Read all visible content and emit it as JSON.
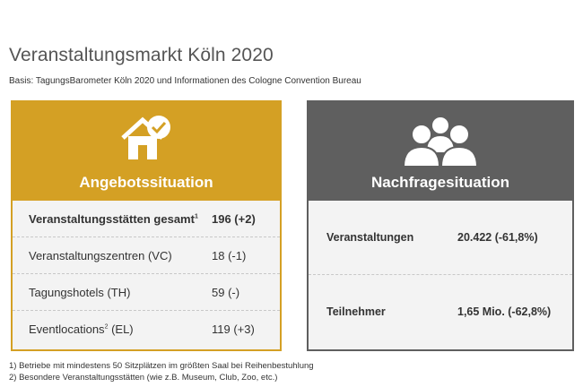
{
  "page": {
    "title": "Veranstaltungsmarkt Köln 2020",
    "subtitle": "Basis: TagungsBarometer Köln 2020 und Informationen des Cologne Convention Bureau"
  },
  "supply": {
    "heading": "Angebotssituation",
    "icon": "house-check-icon",
    "accent": "#d4a024",
    "rows": [
      {
        "label": "Veranstaltungsstätten gesamt",
        "footnote": "1",
        "value": "196 (+2)"
      },
      {
        "label": "Veranstaltungszentren (VC)",
        "footnote": "",
        "value": "18 (-1)"
      },
      {
        "label": "Tagungshotels (TH)",
        "footnote": "",
        "value": "59 (-)"
      },
      {
        "label": "Eventlocations",
        "footnote": "2",
        "label_suffix": " (EL)",
        "value": "119 (+3)"
      }
    ]
  },
  "demand": {
    "heading": "Nachfragesituation",
    "icon": "people-group-icon",
    "accent": "#5f5f5f",
    "rows": [
      {
        "label": "Veranstaltungen",
        "value": "20.422 (-61,8%)"
      },
      {
        "label": "Teilnehmer",
        "value": "1,65 Mio. (-62,8%)"
      }
    ]
  },
  "footnotes": [
    "1) Betriebe mit mindestens 50 Sitzplätzen im größten Saal bei Reihenbestuhlung",
    "2) Besondere Veranstaltungsstätten (wie z.B. Museum, Club, Zoo, etc.)"
  ]
}
